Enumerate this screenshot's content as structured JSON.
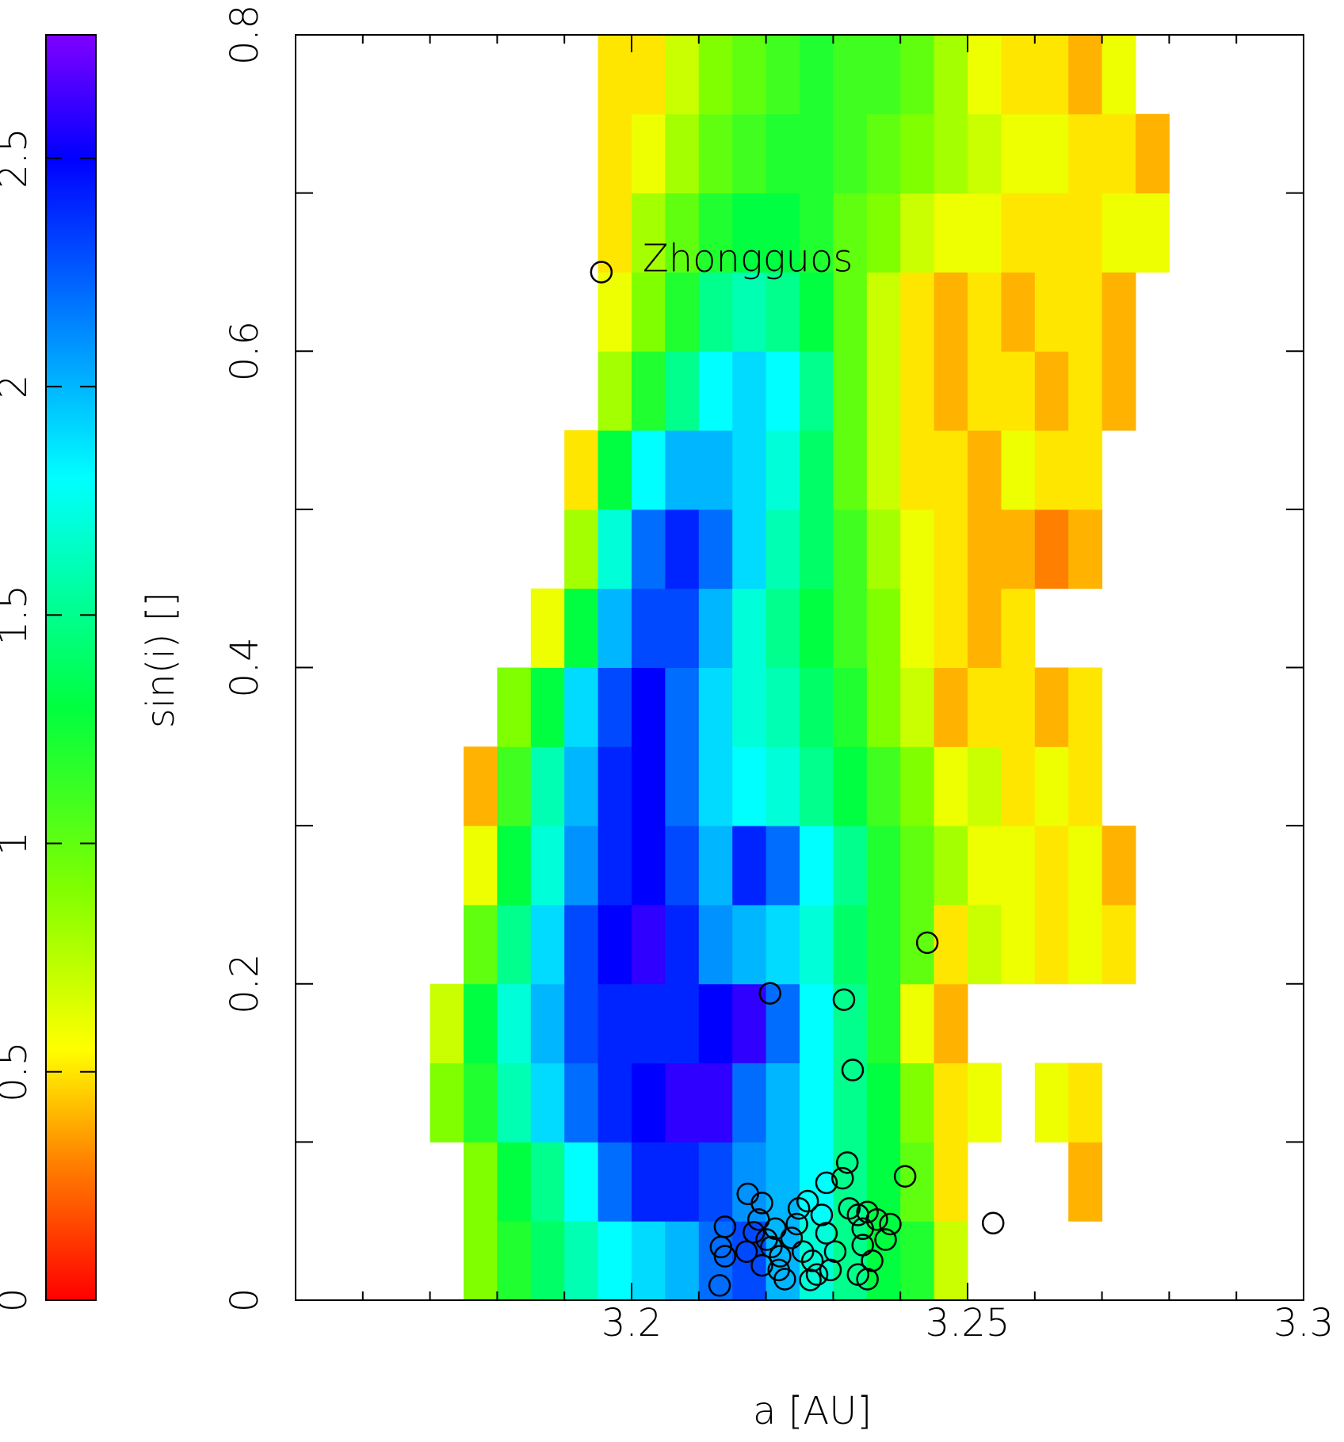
{
  "chart_data": {
    "type": "heatmap",
    "xlabel": "a [AU]",
    "colorbar_label": "sin(i) []",
    "xlim": [
      3.15,
      3.3
    ],
    "xticks": [
      3.2,
      3.25,
      3.3
    ],
    "xminorticks": [
      3.16,
      3.17,
      3.18,
      3.19,
      3.21,
      3.22,
      3.23,
      3.24,
      3.26,
      3.27,
      3.28,
      3.29
    ],
    "ylim": [
      0,
      0.8
    ],
    "yticks": [
      0,
      0.2,
      0.4,
      0.6,
      0.8
    ],
    "yminorticks": [
      0.1,
      0.3,
      0.5,
      0.7
    ],
    "clim": [
      0,
      2.77
    ],
    "cticks": [
      0,
      0.5,
      1,
      1.5,
      2,
      2.5
    ],
    "colorscale": [
      [
        0,
        "#ff0000"
      ],
      [
        0.3,
        "#ff8000"
      ],
      [
        0.55,
        "#ffff00"
      ],
      [
        0.9,
        "#80ff00"
      ],
      [
        1.3,
        "#00ff40"
      ],
      [
        1.8,
        "#00ffff"
      ],
      [
        2.5,
        "#0000ff"
      ],
      [
        2.77,
        "#8000ff"
      ]
    ],
    "xbins": [
      3.17,
      3.175,
      3.18,
      3.185,
      3.19,
      3.195,
      3.2,
      3.205,
      3.21,
      3.215,
      3.22,
      3.225,
      3.23,
      3.235,
      3.24,
      3.245,
      3.25,
      3.255,
      3.26,
      3.265,
      3.27,
      3.275,
      3.28
    ],
    "ybins": [
      0,
      0.05,
      0.1,
      0.15,
      0.2,
      0.25,
      0.3,
      0.35,
      0.4,
      0.45,
      0.5,
      0.55,
      0.6,
      0.65,
      0.7,
      0.75,
      0.8
    ],
    "z": [
      [
        null,
        0.9,
        1.2,
        1.4,
        1.6,
        1.8,
        1.9,
        2.0,
        2.2,
        2.3,
        2.0,
        1.7,
        1.5,
        1.3,
        1.2,
        0.7,
        null,
        null,
        null,
        null,
        null,
        null
      ],
      [
        null,
        0.9,
        1.3,
        1.5,
        1.8,
        2.2,
        2.4,
        2.4,
        2.3,
        2.1,
        2.0,
        1.8,
        1.5,
        1.3,
        1.0,
        0.5,
        null,
        null,
        null,
        0.4,
        null,
        null
      ],
      [
        0.9,
        1.2,
        1.6,
        1.9,
        2.2,
        2.4,
        2.5,
        2.6,
        2.6,
        2.2,
        2.0,
        1.8,
        1.5,
        1.3,
        0.9,
        0.5,
        0.6,
        null,
        0.6,
        0.5,
        null,
        null
      ],
      [
        0.7,
        1.3,
        1.7,
        2.0,
        2.3,
        2.4,
        2.4,
        2.4,
        2.5,
        2.6,
        2.2,
        1.8,
        1.5,
        1.2,
        0.6,
        0.4,
        null,
        null,
        null,
        null,
        null,
        null
      ],
      [
        null,
        1.0,
        1.5,
        1.9,
        2.3,
        2.5,
        2.6,
        2.4,
        2.1,
        2.0,
        1.9,
        1.7,
        1.4,
        1.2,
        1.0,
        0.5,
        0.7,
        0.6,
        0.5,
        0.6,
        0.5,
        null
      ],
      [
        null,
        0.6,
        1.3,
        1.7,
        2.1,
        2.4,
        2.5,
        2.3,
        2.0,
        2.4,
        2.2,
        1.8,
        1.5,
        1.2,
        1.0,
        0.8,
        0.6,
        0.6,
        0.5,
        0.6,
        0.4,
        null
      ],
      [
        null,
        0.4,
        1.1,
        1.6,
        2.0,
        2.4,
        2.5,
        2.2,
        1.9,
        1.8,
        1.7,
        1.5,
        1.3,
        1.1,
        0.9,
        0.6,
        0.7,
        0.5,
        0.6,
        0.5,
        null,
        null
      ],
      [
        null,
        null,
        0.9,
        1.3,
        1.9,
        2.3,
        2.5,
        2.2,
        1.9,
        1.7,
        1.6,
        1.4,
        1.2,
        0.9,
        0.7,
        0.4,
        0.5,
        0.5,
        0.4,
        0.5,
        null,
        null
      ],
      [
        null,
        null,
        null,
        0.6,
        1.3,
        2.0,
        2.3,
        2.3,
        2.0,
        1.7,
        1.5,
        1.3,
        1.1,
        0.9,
        0.6,
        0.5,
        0.4,
        0.5,
        null,
        null,
        null,
        null
      ],
      [
        null,
        null,
        null,
        null,
        0.8,
        1.7,
        2.2,
        2.4,
        2.2,
        1.9,
        1.6,
        1.4,
        1.1,
        0.8,
        0.6,
        0.5,
        0.4,
        0.4,
        0.3,
        0.4,
        null,
        null
      ],
      [
        null,
        null,
        null,
        null,
        0.5,
        1.3,
        1.8,
        2.0,
        2.0,
        1.9,
        1.7,
        1.4,
        1.0,
        0.7,
        0.5,
        0.5,
        0.4,
        0.6,
        0.5,
        0.5,
        null,
        null
      ],
      [
        null,
        null,
        null,
        null,
        null,
        0.8,
        1.2,
        1.5,
        1.8,
        1.9,
        1.8,
        1.5,
        1.0,
        0.7,
        0.5,
        0.4,
        0.5,
        0.5,
        0.4,
        0.5,
        0.4,
        null
      ],
      [
        null,
        null,
        null,
        null,
        null,
        0.6,
        0.9,
        1.2,
        1.5,
        1.6,
        1.5,
        1.3,
        1.0,
        0.7,
        0.5,
        0.4,
        0.5,
        0.4,
        0.5,
        0.5,
        0.4,
        null
      ],
      [
        null,
        null,
        null,
        null,
        null,
        0.5,
        0.8,
        1.0,
        1.2,
        1.3,
        1.3,
        1.2,
        1.0,
        0.9,
        0.7,
        0.6,
        0.6,
        0.5,
        0.5,
        0.5,
        0.6,
        0.6
      ],
      [
        null,
        null,
        null,
        null,
        null,
        0.5,
        0.6,
        0.8,
        1.0,
        1.1,
        1.2,
        1.2,
        1.1,
        1.0,
        0.9,
        0.8,
        0.7,
        0.6,
        0.6,
        0.5,
        0.5,
        0.4
      ],
      [
        null,
        null,
        null,
        null,
        null,
        0.5,
        0.5,
        0.7,
        0.9,
        1.0,
        1.1,
        1.2,
        1.1,
        1.1,
        1.0,
        0.8,
        0.6,
        0.5,
        0.5,
        0.4,
        0.6,
        null
      ]
    ],
    "markers": {
      "color": "#000000",
      "x": [
        3.244,
        3.2206,
        3.2316,
        3.2329,
        3.2538,
        3.2407,
        3.2173,
        3.2194,
        3.2189,
        3.2182,
        3.2139,
        3.2133,
        3.2139,
        3.2131,
        3.2171,
        3.2201,
        3.2214,
        3.2208,
        3.2221,
        3.2194,
        3.2219,
        3.2228,
        3.2249,
        3.2262,
        3.2246,
        3.2238,
        3.2255,
        3.2269,
        3.2276,
        3.2266,
        3.2296,
        3.2303,
        3.229,
        3.2283,
        3.2324,
        3.2337,
        3.2351,
        3.2344,
        3.2365,
        3.2385,
        3.2378,
        3.2344,
        3.2358,
        3.2337,
        3.2351,
        3.2314,
        3.229,
        3.2321
      ],
      "y": [
        0.226,
        0.194,
        0.19,
        0.1455,
        0.0487,
        0.0783,
        0.0672,
        0.0614,
        0.051,
        0.0429,
        0.0464,
        0.0336,
        0.0278,
        0.0093,
        0.0307,
        0.0383,
        0.0452,
        0.0336,
        0.0278,
        0.022,
        0.0191,
        0.0133,
        0.058,
        0.0626,
        0.0481,
        0.0394,
        0.0307,
        0.0249,
        0.0162,
        0.0128,
        0.0191,
        0.0307,
        0.0423,
        0.0539,
        0.058,
        0.0539,
        0.0557,
        0.0452,
        0.051,
        0.0481,
        0.0383,
        0.0348,
        0.0249,
        0.0162,
        0.0133,
        0.0771,
        0.0742,
        0.087
      ]
    },
    "annotation": {
      "text": "Zhongguos",
      "x": 3.1955,
      "y": 0.65
    }
  }
}
